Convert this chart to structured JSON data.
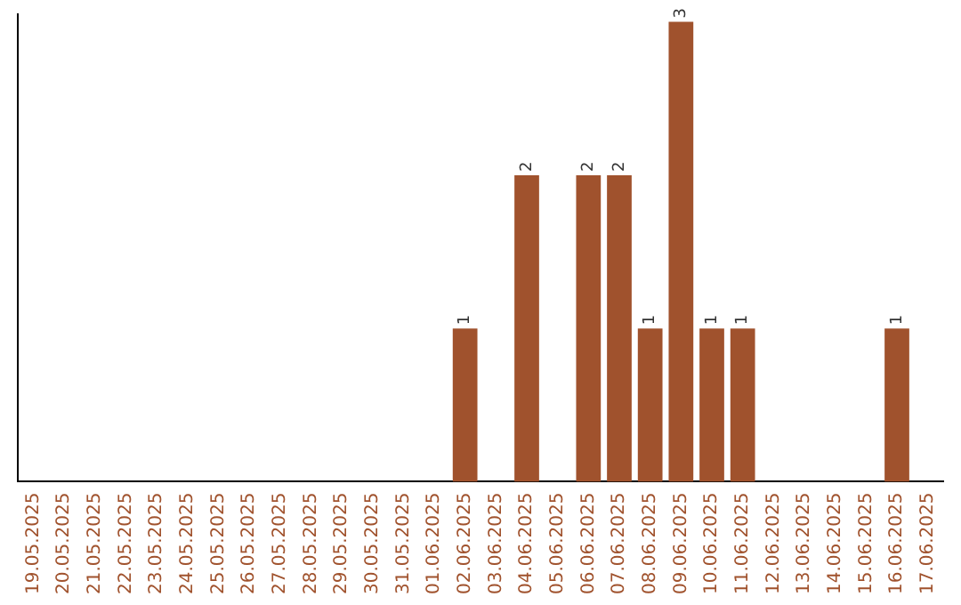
{
  "chart_data": {
    "type": "bar",
    "categories": [
      "19.05.2025",
      "20.05.2025",
      "21.05.2025",
      "22.05.2025",
      "23.05.2025",
      "24.05.2025",
      "25.05.2025",
      "26.05.2025",
      "27.05.2025",
      "28.05.2025",
      "29.05.2025",
      "30.05.2025",
      "31.05.2025",
      "01.06.2025",
      "02.06.2025",
      "03.06.2025",
      "04.06.2025",
      "05.06.2025",
      "06.06.2025",
      "07.06.2025",
      "08.06.2025",
      "09.06.2025",
      "10.06.2025",
      "11.06.2025",
      "12.06.2025",
      "13.06.2025",
      "14.06.2025",
      "15.06.2025",
      "16.06.2025",
      "17.06.2025"
    ],
    "values": [
      null,
      null,
      null,
      null,
      null,
      null,
      null,
      null,
      null,
      null,
      null,
      null,
      null,
      null,
      1,
      null,
      2,
      null,
      2,
      2,
      1,
      3,
      1,
      1,
      null,
      null,
      null,
      null,
      1,
      null
    ],
    "data_labels": true,
    "ylim": [
      0,
      3.05
    ],
    "color": "#a0522d",
    "grid": false,
    "tick_labels": "x"
  }
}
